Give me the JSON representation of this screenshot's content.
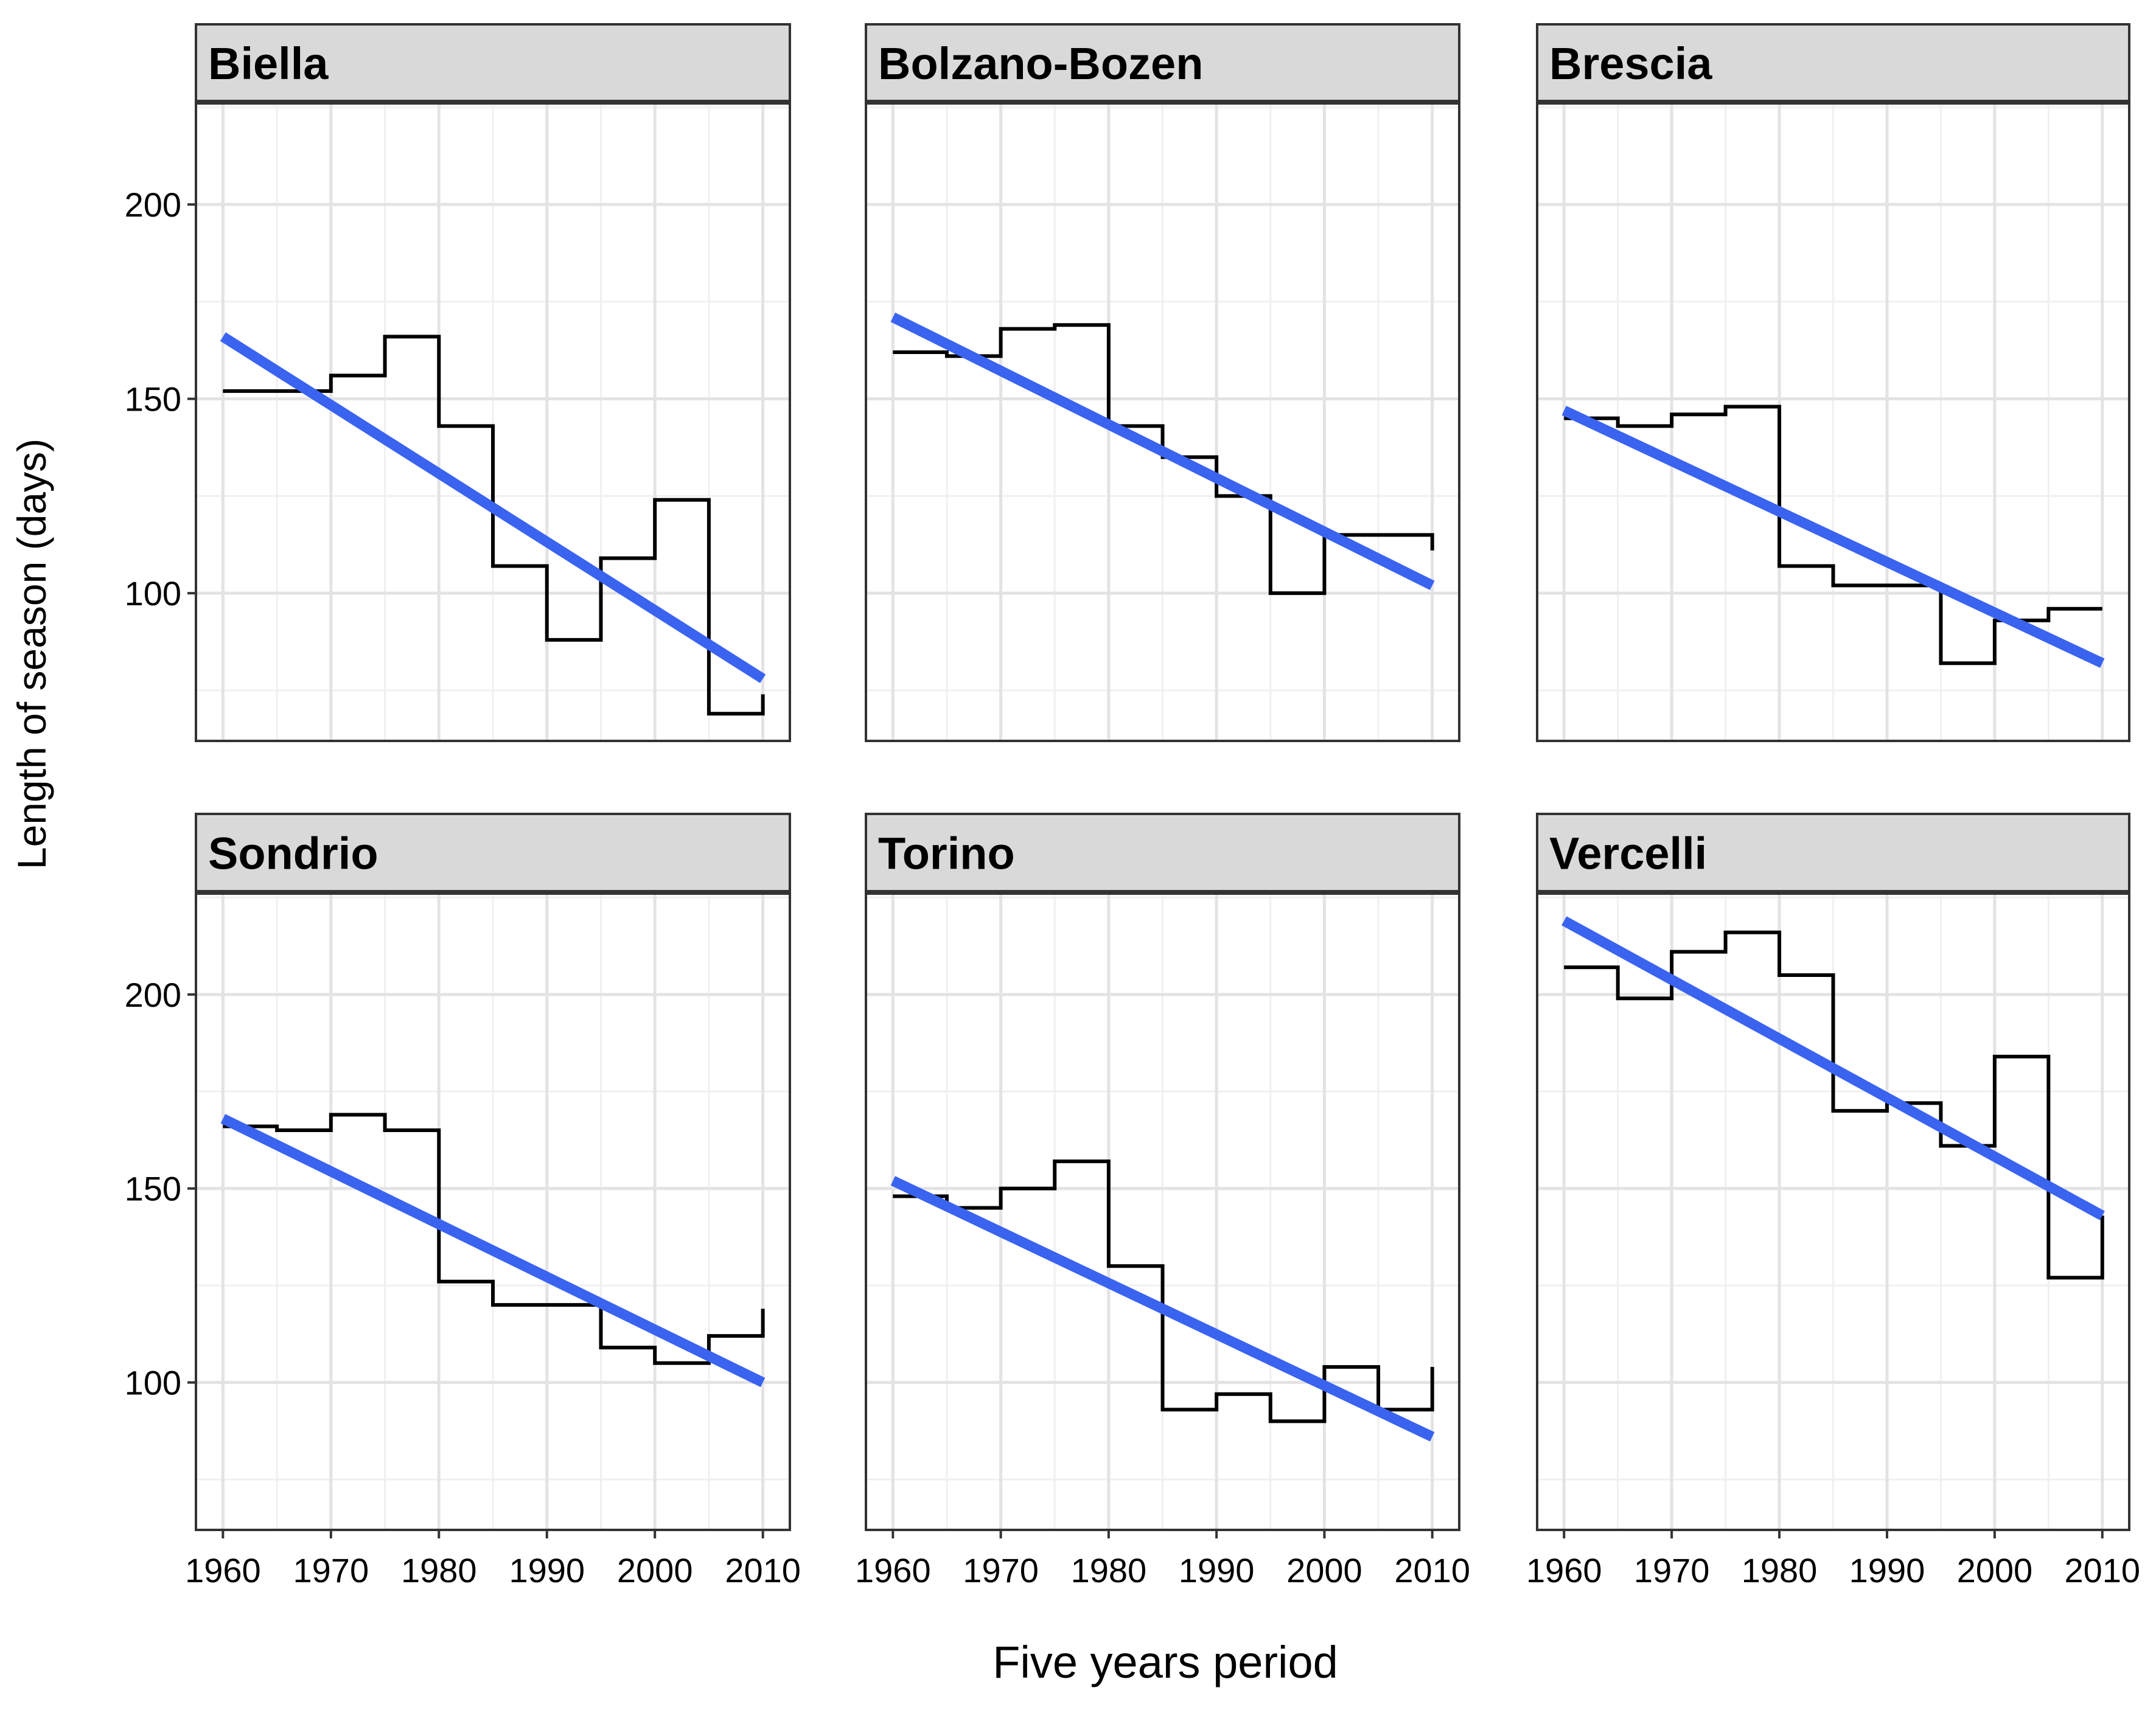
{
  "chart_data": {
    "type": "line",
    "xlabel": "Five years period",
    "ylabel": "Length of season (days)",
    "x_ticks": [
      1960,
      1970,
      1980,
      1990,
      2000,
      2010
    ],
    "y_ticks": [
      100,
      150,
      200
    ],
    "xlim": [
      1957.5,
      2012.5
    ],
    "ylim": [
      62,
      226
    ],
    "grid": true,
    "colors": {
      "trend": "#3a63f0",
      "step": "#000000",
      "strip": "#d9d9d9"
    },
    "facets": [
      {
        "name": "Biella",
        "x": [
          1960,
          1965,
          1970,
          1975,
          1980,
          1985,
          1990,
          1995,
          2000,
          2005,
          2010
        ],
        "values": [
          152,
          152,
          156,
          166,
          143,
          107,
          88,
          109,
          124,
          69,
          74
        ],
        "trend": [
          [
            1960,
            166
          ],
          [
            2010,
            78
          ]
        ]
      },
      {
        "name": "Bolzano-Bozen",
        "x": [
          1960,
          1965,
          1970,
          1975,
          1980,
          1985,
          1990,
          1995,
          2000,
          2005,
          2010
        ],
        "values": [
          162,
          161,
          168,
          169,
          143,
          135,
          125,
          100,
          115,
          115,
          111
        ],
        "trend": [
          [
            1960,
            171
          ],
          [
            2010,
            102
          ]
        ]
      },
      {
        "name": "Brescia",
        "x": [
          1960,
          1965,
          1970,
          1975,
          1980,
          1985,
          1990,
          1995,
          2000,
          2005,
          2010
        ],
        "values": [
          145,
          143,
          146,
          148,
          107,
          102,
          102,
          82,
          93,
          96,
          96
        ],
        "trend": [
          [
            1960,
            147
          ],
          [
            2010,
            82
          ]
        ]
      },
      {
        "name": "Sondrio",
        "x": [
          1960,
          1965,
          1970,
          1975,
          1980,
          1985,
          1990,
          1995,
          2000,
          2005,
          2010
        ],
        "values": [
          166,
          165,
          169,
          165,
          126,
          120,
          120,
          109,
          105,
          112,
          119
        ],
        "trend": [
          [
            1960,
            168
          ],
          [
            2010,
            100
          ]
        ]
      },
      {
        "name": "Torino",
        "x": [
          1960,
          1965,
          1970,
          1975,
          1980,
          1985,
          1990,
          1995,
          2000,
          2005,
          2010
        ],
        "values": [
          148,
          145,
          150,
          157,
          130,
          93,
          97,
          90,
          104,
          93,
          104
        ],
        "trend": [
          [
            1960,
            152
          ],
          [
            2010,
            86
          ]
        ]
      },
      {
        "name": "Vercelli",
        "x": [
          1960,
          1965,
          1970,
          1975,
          1980,
          1985,
          1990,
          1995,
          2000,
          2005,
          2010
        ],
        "values": [
          207,
          199,
          211,
          216,
          205,
          170,
          172,
          161,
          184,
          127,
          143
        ],
        "trend": [
          [
            1960,
            219
          ],
          [
            2010,
            143
          ]
        ]
      }
    ]
  }
}
